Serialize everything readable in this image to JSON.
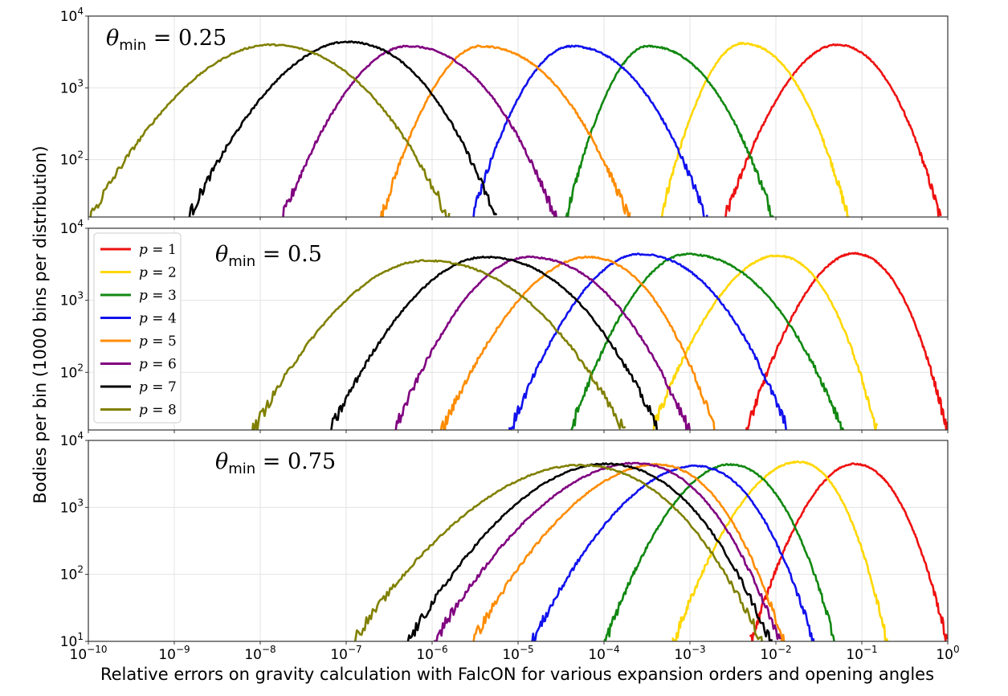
{
  "chart_data": {
    "type": "line",
    "xlabel": "Relative errors on gravity calculation with FalcON for various expansion orders and opening angles",
    "ylabel": "Bodies per bin (1000 bins per distribution)",
    "x_scale": "log",
    "y_scale": "log",
    "xlim": [
      1e-10,
      1
    ],
    "x_ticks": [
      {
        "base": "10",
        "exp": "−10",
        "value": -10
      },
      {
        "base": "10",
        "exp": "−9",
        "value": -9
      },
      {
        "base": "10",
        "exp": "−8",
        "value": -8
      },
      {
        "base": "10",
        "exp": "−7",
        "value": -7
      },
      {
        "base": "10",
        "exp": "−6",
        "value": -6
      },
      {
        "base": "10",
        "exp": "−5",
        "value": -5
      },
      {
        "base": "10",
        "exp": "−4",
        "value": -4
      },
      {
        "base": "10",
        "exp": "−3",
        "value": -3
      },
      {
        "base": "10",
        "exp": "−2",
        "value": -2
      },
      {
        "base": "10",
        "exp": "−1",
        "value": -1
      },
      {
        "base": "10",
        "exp": "0",
        "value": 0
      }
    ],
    "legend": {
      "placement": "upper-left of middle panel",
      "entries": [
        {
          "p": "p",
          "eq": " = 1",
          "color": "#ee1111"
        },
        {
          "p": "p",
          "eq": " = 2",
          "color": "#ffd700"
        },
        {
          "p": "p",
          "eq": " = 3",
          "color": "#118811"
        },
        {
          "p": "p",
          "eq": " = 4",
          "color": "#1111ee"
        },
        {
          "p": "p",
          "eq": " = 5",
          "color": "#ff8c00"
        },
        {
          "p": "p",
          "eq": " = 6",
          "color": "#800080"
        },
        {
          "p": "p",
          "eq": " = 7",
          "color": "#000000"
        },
        {
          "p": "p",
          "eq": " = 8",
          "color": "#808000"
        }
      ]
    },
    "panels": [
      {
        "theta_symbol": "θ",
        "theta_sub": "min",
        "theta_eq": " = 0.25",
        "ylim_log10": [
          1.2,
          4
        ],
        "y_ticks": [
          {
            "base": "10",
            "exp": "2",
            "value": 2
          },
          {
            "base": "10",
            "exp": "3",
            "value": 3
          },
          {
            "base": "10",
            "exp": "4",
            "value": 4
          }
        ],
        "series": [
          {
            "name": "p = 1",
            "color": "#ee1111",
            "peak_x_log10": -1.3,
            "peak_y_log10": 3.6,
            "left_x_log10": -2.6,
            "right_x_log10": -0.08
          },
          {
            "name": "p = 2",
            "color": "#ffd700",
            "peak_x_log10": -2.4,
            "peak_y_log10": 3.62,
            "left_x_log10": -3.35,
            "right_x_log10": -1.15
          },
          {
            "name": "p = 3",
            "color": "#118811",
            "peak_x_log10": -3.5,
            "peak_y_log10": 3.58,
            "left_x_log10": -4.45,
            "right_x_log10": -2.02
          },
          {
            "name": "p = 4",
            "color": "#1111ee",
            "peak_x_log10": -4.4,
            "peak_y_log10": 3.58,
            "left_x_log10": -5.55,
            "right_x_log10": -2.8
          },
          {
            "name": "p = 5",
            "color": "#ff8c00",
            "peak_x_log10": -5.45,
            "peak_y_log10": 3.58,
            "left_x_log10": -6.6,
            "right_x_log10": -3.7
          },
          {
            "name": "p = 6",
            "color": "#800080",
            "peak_x_log10": -6.3,
            "peak_y_log10": 3.58,
            "left_x_log10": -7.75,
            "right_x_log10": -4.55
          },
          {
            "name": "p = 7",
            "color": "#000000",
            "peak_x_log10": -7.0,
            "peak_y_log10": 3.64,
            "left_x_log10": -8.85,
            "right_x_log10": -5.25
          },
          {
            "name": "p = 8",
            "color": "#808000",
            "peak_x_log10": -7.9,
            "peak_y_log10": 3.6,
            "left_x_log10": -10.0,
            "right_x_log10": -5.8
          }
        ]
      },
      {
        "theta_symbol": "θ",
        "theta_sub": "min",
        "theta_eq": " = 0.5",
        "ylim_log10": [
          1.2,
          4
        ],
        "y_ticks": [
          {
            "base": "10",
            "exp": "2",
            "value": 2
          },
          {
            "base": "10",
            "exp": "3",
            "value": 3
          },
          {
            "base": "10",
            "exp": "4",
            "value": 4
          }
        ],
        "series": [
          {
            "name": "p = 1",
            "color": "#ee1111",
            "peak_x_log10": -1.1,
            "peak_y_log10": 3.65,
            "left_x_log10": -2.35,
            "right_x_log10": 0.0
          },
          {
            "name": "p = 2",
            "color": "#ffd700",
            "peak_x_log10": -2.0,
            "peak_y_log10": 3.62,
            "left_x_log10": -3.45,
            "right_x_log10": -0.82
          },
          {
            "name": "p = 3",
            "color": "#118811",
            "peak_x_log10": -3.05,
            "peak_y_log10": 3.64,
            "left_x_log10": -4.4,
            "right_x_log10": -1.2
          },
          {
            "name": "p = 4",
            "color": "#1111ee",
            "peak_x_log10": -3.6,
            "peak_y_log10": 3.64,
            "left_x_log10": -5.1,
            "right_x_log10": -1.85
          },
          {
            "name": "p = 5",
            "color": "#ff8c00",
            "peak_x_log10": -4.2,
            "peak_y_log10": 3.6,
            "left_x_log10": -5.9,
            "right_x_log10": -2.7
          },
          {
            "name": "p = 6",
            "color": "#800080",
            "peak_x_log10": -4.9,
            "peak_y_log10": 3.6,
            "left_x_log10": -6.45,
            "right_x_log10": -3.0
          },
          {
            "name": "p = 7",
            "color": "#000000",
            "peak_x_log10": -5.4,
            "peak_y_log10": 3.6,
            "left_x_log10": -7.2,
            "right_x_log10": -3.35
          },
          {
            "name": "p = 8",
            "color": "#808000",
            "peak_x_log10": -6.1,
            "peak_y_log10": 3.55,
            "left_x_log10": -8.1,
            "right_x_log10": -3.75
          }
        ]
      },
      {
        "theta_symbol": "θ",
        "theta_sub": "min",
        "theta_eq": " = 0.75",
        "ylim_log10": [
          1,
          4
        ],
        "y_ticks": [
          {
            "base": "10",
            "exp": "1",
            "value": 1
          },
          {
            "base": "10",
            "exp": "2",
            "value": 2
          },
          {
            "base": "10",
            "exp": "3",
            "value": 3
          },
          {
            "base": "10",
            "exp": "4",
            "value": 4
          }
        ],
        "series": [
          {
            "name": "p = 1",
            "color": "#ee1111",
            "peak_x_log10": -1.1,
            "peak_y_log10": 3.65,
            "left_x_log10": -2.3,
            "right_x_log10": 0.0
          },
          {
            "name": "p = 2",
            "color": "#ffd700",
            "peak_x_log10": -1.75,
            "peak_y_log10": 3.68,
            "left_x_log10": -3.2,
            "right_x_log10": -0.7
          },
          {
            "name": "p = 3",
            "color": "#118811",
            "peak_x_log10": -2.55,
            "peak_y_log10": 3.64,
            "left_x_log10": -4.0,
            "right_x_log10": -1.3
          },
          {
            "name": "p = 4",
            "color": "#1111ee",
            "peak_x_log10": -2.95,
            "peak_y_log10": 3.62,
            "left_x_log10": -4.85,
            "right_x_log10": -1.55
          },
          {
            "name": "p = 5",
            "color": "#ff8c00",
            "peak_x_log10": -3.4,
            "peak_y_log10": 3.64,
            "left_x_log10": -5.55,
            "right_x_log10": -1.9
          },
          {
            "name": "p = 6",
            "color": "#800080",
            "peak_x_log10": -3.65,
            "peak_y_log10": 3.66,
            "left_x_log10": -6.0,
            "right_x_log10": -1.95
          },
          {
            "name": "p = 7",
            "color": "#000000",
            "peak_x_log10": -4.0,
            "peak_y_log10": 3.65,
            "left_x_log10": -6.3,
            "right_x_log10": -2.05
          },
          {
            "name": "p = 8",
            "color": "#808000",
            "peak_x_log10": -4.3,
            "peak_y_log10": 3.63,
            "left_x_log10": -6.95,
            "right_x_log10": -2.15
          }
        ]
      }
    ]
  }
}
